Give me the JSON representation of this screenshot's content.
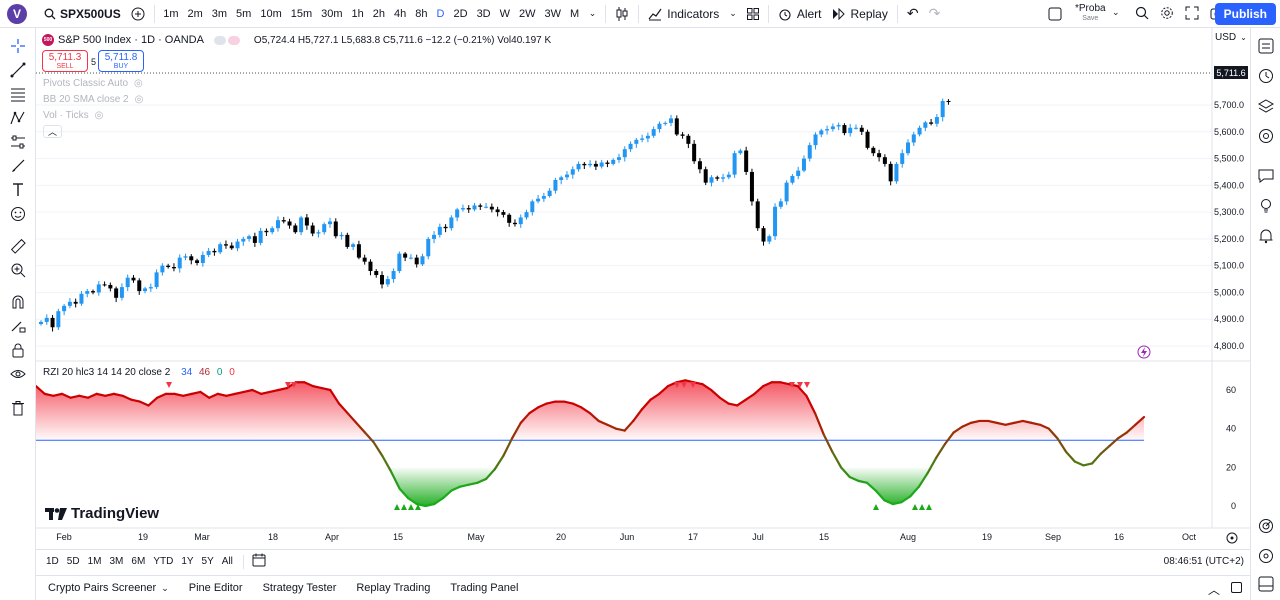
{
  "topbar": {
    "avatar_letter": "V",
    "symbol": "SPX500US",
    "intervals": [
      "1m",
      "2m",
      "3m",
      "5m",
      "10m",
      "15m",
      "30m",
      "1h",
      "2h",
      "4h",
      "8h",
      "D",
      "2D",
      "3D",
      "W",
      "2W",
      "3W",
      "M"
    ],
    "active_interval": "D",
    "indicators_label": "Indicators",
    "alert_label": "Alert",
    "replay_label": "Replay",
    "layout_name": "*Proba",
    "layout_sub": "Save",
    "publish_label": "Publish"
  },
  "legend": {
    "badge": "500",
    "title": "S&P 500 Index · 1D · OANDA",
    "ohlc": "O5,724.4  H5,727.1  L5,683.8  C5,711.6  −12.2 (−0.21%)  Vol40.197 K",
    "sell_price": "5,711.3",
    "sell_label": "SELL",
    "spread": "5",
    "buy_price": "5,711.8",
    "buy_label": "BUY",
    "indicators": [
      "Pivots Classic Auto",
      "BB 20 SMA close 2",
      "Vol · Ticks"
    ]
  },
  "rzi": {
    "label": "RZI 20 hlc3 14 14 20 close 2",
    "v1": "34",
    "v2": "46",
    "v3": "0",
    "v4": "0"
  },
  "currency": "USD",
  "current_price": "5,711.6",
  "watermark": "TradingView",
  "timebar": {
    "ranges": [
      "1D",
      "5D",
      "1M",
      "3M",
      "6M",
      "YTD",
      "1Y",
      "5Y",
      "All"
    ],
    "clock": "08:46:51 (UTC+2)"
  },
  "bottombar": {
    "items": [
      "Crypto Pairs Screener",
      "Pine Editor",
      "Strategy Tester",
      "Replay Trading",
      "Trading Panel"
    ]
  },
  "colors": {
    "up": "#2196f3",
    "down": "#000000",
    "accent": "#2962ff"
  },
  "chart_data": {
    "type": "candlestick",
    "price_axis_ticks": [
      "5,700.0",
      "5,600.0",
      "5,500.0",
      "5,400.0",
      "5,300.0",
      "5,200.0",
      "5,100.0",
      "5,000.0",
      "4,900.0",
      "4,800.0"
    ],
    "rzi_axis_ticks": [
      "60",
      "40",
      "20",
      "0"
    ],
    "x_ticks": [
      "Feb",
      "19",
      "Mar",
      "18",
      "Apr",
      "15",
      "May",
      "20",
      "Jun",
      "17",
      "Jul",
      "15",
      "Aug",
      "19",
      "Sep",
      "16",
      "Oct"
    ],
    "closes": [
      4890,
      4905,
      4870,
      4930,
      4950,
      4965,
      4958,
      4995,
      5005,
      5000,
      5030,
      5028,
      5015,
      4980,
      5020,
      5055,
      5045,
      5005,
      5015,
      5020,
      5075,
      5100,
      5095,
      5090,
      5130,
      5135,
      5120,
      5110,
      5140,
      5155,
      5150,
      5180,
      5175,
      5165,
      5190,
      5200,
      5210,
      5185,
      5230,
      5225,
      5240,
      5270,
      5265,
      5250,
      5225,
      5280,
      5250,
      5220,
      5225,
      5255,
      5265,
      5210,
      5215,
      5170,
      5180,
      5130,
      5115,
      5080,
      5065,
      5030,
      5050,
      5080,
      5145,
      5130,
      5130,
      5105,
      5135,
      5200,
      5215,
      5245,
      5240,
      5280,
      5310,
      5315,
      5310,
      5325,
      5320,
      5320,
      5310,
      5300,
      5290,
      5260,
      5255,
      5280,
      5300,
      5340,
      5350,
      5360,
      5380,
      5420,
      5430,
      5440,
      5460,
      5480,
      5475,
      5480,
      5470,
      5485,
      5480,
      5495,
      5505,
      5535,
      5555,
      5570,
      5575,
      5585,
      5610,
      5630,
      5633,
      5650,
      5590,
      5585,
      5555,
      5490,
      5460,
      5410,
      5430,
      5425,
      5430,
      5440,
      5520,
      5530,
      5450,
      5340,
      5240,
      5190,
      5210,
      5320,
      5340,
      5410,
      5435,
      5455,
      5500,
      5550,
      5590,
      5605,
      5610,
      5620,
      5625,
      5595,
      5615,
      5615,
      5600,
      5540,
      5520,
      5505,
      5480,
      5415,
      5480,
      5520,
      5560,
      5590,
      5615,
      5635,
      5630,
      5655,
      5715,
      5711
    ],
    "rzi_values": [
      62,
      58,
      57,
      58,
      56,
      57,
      56,
      58,
      57,
      58,
      57,
      55,
      54,
      52,
      56,
      58,
      58,
      57,
      58,
      59,
      56,
      58,
      57,
      58,
      59,
      60,
      58,
      59,
      60,
      61,
      64,
      64,
      62,
      61,
      60,
      53,
      48,
      43,
      38,
      33,
      26,
      18,
      9,
      4,
      1,
      0,
      1,
      4,
      8,
      10,
      11,
      12,
      14,
      19,
      26,
      35,
      43,
      48,
      51,
      53,
      54,
      54,
      53,
      51,
      48,
      44,
      42,
      40,
      39,
      44,
      50,
      55,
      58,
      62,
      64,
      65,
      64,
      63,
      60,
      56,
      53,
      52,
      55,
      58,
      62,
      64,
      64,
      63,
      62,
      57,
      48,
      37,
      28,
      20,
      15,
      13,
      12,
      8,
      3,
      1,
      2,
      5,
      10,
      17,
      25,
      32,
      38,
      41,
      43,
      44,
      44,
      43,
      42,
      43,
      44,
      43,
      42,
      40,
      35,
      28,
      23,
      21,
      22,
      27,
      31,
      35,
      38,
      42,
      46
    ]
  }
}
